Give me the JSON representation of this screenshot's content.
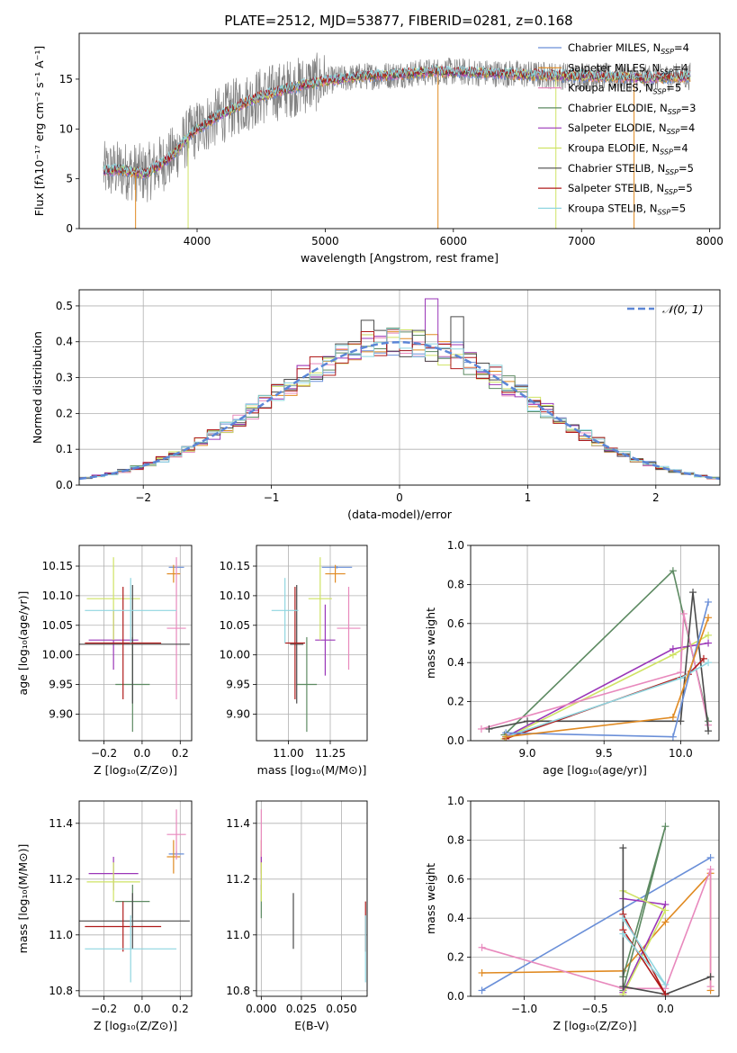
{
  "figure_title": "PLATE=2512, MJD=53877, FIBERID=0281, z=0.168",
  "colors": {
    "Chabrier MILES": "#6a8fd8",
    "Salpeter MILES": "#e08a22",
    "Kroupa MILES": "#e889bd",
    "Chabrier ELODIE": "#5d8a62",
    "Salpeter ELODIE": "#9a36b8",
    "Kroupa ELODIE": "#cfe364",
    "Chabrier STELIB": "#4a4a4a",
    "Salpeter STELIB": "#b01c1c",
    "Kroupa STELIB": "#8fd6e0",
    "data": "#808080",
    "normal": "#5b86d6"
  },
  "chart_data": [
    {
      "id": "spectrum",
      "type": "line",
      "title": "PLATE=2512, MJD=53877, FIBERID=0281, z=0.168",
      "xlabel": "wavelength [Angstrom, rest frame]",
      "ylabel": "Flux [fλ10⁻¹⁷ erg cm⁻² s⁻¹ A⁻¹]",
      "xlim": [
        3080,
        8080
      ],
      "ylim": [
        0,
        19.6
      ],
      "xticks": [
        "4000",
        "5000",
        "6000",
        "7000",
        "8000"
      ],
      "yticks": [
        "0",
        "5",
        "10",
        "15"
      ],
      "grid": false,
      "legend_position": "upper right",
      "x_range_data": [
        3270,
        7850
      ],
      "continuum": {
        "x": [
          3270,
          3400,
          3600,
          3800,
          3950,
          4100,
          4300,
          4500,
          4700,
          4900,
          5100,
          5300,
          5500,
          5700,
          5900,
          6100,
          6300,
          6500,
          6700,
          6900,
          7100,
          7300,
          7500,
          7700,
          7850
        ],
        "y": [
          5.8,
          5.9,
          5.5,
          7.2,
          9.5,
          10.8,
          12.2,
          13.3,
          14.0,
          14.6,
          15.0,
          15.3,
          15.4,
          15.6,
          15.8,
          15.7,
          15.6,
          15.5,
          15.4,
          15.3,
          15.3,
          15.2,
          15.1,
          15.2,
          15.3
        ]
      },
      "series": [
        {
          "name": "Chabrier MILES",
          "nssp": "4"
        },
        {
          "name": "Salpeter MILES",
          "nssp": "4"
        },
        {
          "name": "Kroupa MILES",
          "nssp": "5"
        },
        {
          "name": "Chabrier ELODIE",
          "nssp": "3"
        },
        {
          "name": "Salpeter ELODIE",
          "nssp": "4"
        },
        {
          "name": "Kroupa ELODIE",
          "nssp": "4"
        },
        {
          "name": "Chabrier STELIB",
          "nssp": "5"
        },
        {
          "name": "Salpeter STELIB",
          "nssp": "5"
        },
        {
          "name": "Kroupa STELIB",
          "nssp": "5"
        }
      ]
    },
    {
      "id": "residuals",
      "type": "histogram",
      "xlabel": "(data-model)/error",
      "ylabel": "Normed distribution",
      "xlim": [
        -2.5,
        2.5
      ],
      "ylim": [
        0,
        0.545
      ],
      "xticks": [
        "−2",
        "−1",
        "0",
        "1",
        "2"
      ],
      "yticks": [
        "0.0",
        "0.1",
        "0.2",
        "0.3",
        "0.4",
        "0.5"
      ],
      "grid": true,
      "legend_position": "upper right",
      "legend_label": "𝒩(0, 1)",
      "bin_width": 0.1,
      "peaks": [
        {
          "x": 0.25,
          "y": 0.52
        },
        {
          "x": 0.45,
          "y": 0.47
        },
        {
          "x": -0.25,
          "y": 0.46
        }
      ]
    },
    {
      "id": "age_vs_Z",
      "type": "errorbar",
      "xlabel": "Z [log₁₀(Z/Z⊙)]",
      "ylabel": "age  [log₁₀(age/yr)]",
      "xlim": [
        -0.33,
        0.26
      ],
      "ylim": [
        9.855,
        10.185
      ],
      "xticks": [
        "−0.2",
        "0.0",
        "0.2"
      ],
      "yticks": [
        "9.90",
        "9.95",
        "10.00",
        "10.05",
        "10.10",
        "10.15"
      ],
      "grid": true,
      "points": [
        {
          "series": "Chabrier MILES",
          "x": 0.18,
          "y": 10.148,
          "xerr": 0.04,
          "yerr": 0.002
        },
        {
          "series": "Salpeter MILES",
          "x": 0.165,
          "y": 10.137,
          "xerr": 0.035,
          "yerr": 0.015
        },
        {
          "series": "Kroupa MILES",
          "x": 0.18,
          "y": 10.045,
          "xerr": 0.05,
          "yerr": 0.12
        },
        {
          "series": "Chabrier ELODIE",
          "x": -0.05,
          "y": 9.95,
          "xerr": 0.09,
          "yerr": 0.08
        },
        {
          "series": "Salpeter ELODIE",
          "x": -0.15,
          "y": 10.025,
          "xerr": 0.13,
          "yerr": 0.05
        },
        {
          "series": "Kroupa ELODIE",
          "x": -0.15,
          "y": 10.095,
          "xerr": 0.14,
          "yerr": 0.07
        },
        {
          "series": "Chabrier STELIB",
          "x": -0.05,
          "y": 10.018,
          "xerr": 0.3,
          "yerr": 0.1
        },
        {
          "series": "Salpeter STELIB",
          "x": -0.1,
          "y": 10.02,
          "xerr": 0.2,
          "yerr": 0.095
        },
        {
          "series": "Kroupa STELIB",
          "x": -0.06,
          "y": 10.075,
          "xerr": 0.24,
          "yerr": 0.055
        }
      ]
    },
    {
      "id": "age_vs_mass",
      "type": "errorbar",
      "xlabel": "mass [log₁₀(M/M⊙)]",
      "ylabel": "",
      "xlim": [
        10.81,
        11.47
      ],
      "ylim": [
        9.855,
        10.185
      ],
      "xticks": [
        "11.00",
        "11.25"
      ],
      "yticks": [
        "9.90",
        "9.95",
        "10.00",
        "10.05",
        "10.10",
        "10.15"
      ],
      "grid": true,
      "points": [
        {
          "series": "Chabrier MILES",
          "x": 11.29,
          "y": 10.148,
          "xerr": 0.09,
          "yerr": 0.002
        },
        {
          "series": "Salpeter MILES",
          "x": 11.28,
          "y": 10.137,
          "xerr": 0.06,
          "yerr": 0.015
        },
        {
          "series": "Kroupa MILES",
          "x": 11.36,
          "y": 10.045,
          "xerr": 0.07,
          "yerr": 0.07
        },
        {
          "series": "Chabrier ELODIE",
          "x": 11.11,
          "y": 9.95,
          "xerr": 0.06,
          "yerr": 0.08
        },
        {
          "series": "Salpeter ELODIE",
          "x": 11.22,
          "y": 10.025,
          "xerr": 0.06,
          "yerr": 0.06
        },
        {
          "series": "Kroupa ELODIE",
          "x": 11.19,
          "y": 10.095,
          "xerr": 0.07,
          "yerr": 0.07
        },
        {
          "series": "Chabrier STELIB",
          "x": 11.05,
          "y": 10.018,
          "xerr": 0.04,
          "yerr": 0.1
        },
        {
          "series": "Salpeter STELIB",
          "x": 11.04,
          "y": 10.02,
          "xerr": 0.06,
          "yerr": 0.095
        },
        {
          "series": "Kroupa STELIB",
          "x": 10.98,
          "y": 10.075,
          "xerr": 0.08,
          "yerr": 0.055
        }
      ]
    },
    {
      "id": "weight_vs_age",
      "type": "line",
      "xlabel": "age  [log₁₀(age/yr)]",
      "ylabel": "mass weight",
      "xlim": [
        8.63,
        10.25
      ],
      "ylim": [
        0,
        1.0
      ],
      "xticks": [
        "9.0",
        "9.5",
        "10.0"
      ],
      "yticks": [
        "0.0",
        "0.2",
        "0.4",
        "0.6",
        "0.8",
        "1.0"
      ],
      "grid": true,
      "series": [
        {
          "name": "Chabrier ELODIE",
          "x": [
            8.85,
            9.95,
            10.18
          ],
          "y": [
            0.03,
            0.87,
            0.1
          ]
        },
        {
          "name": "Kroupa ELODIE",
          "x": [
            8.85,
            9.95,
            10.18
          ],
          "y": [
            0.01,
            0.44,
            0.54
          ]
        },
        {
          "name": "Salpeter ELODIE",
          "x": [
            8.86,
            9.95,
            10.18
          ],
          "y": [
            0.02,
            0.47,
            0.5
          ]
        },
        {
          "name": "Kroupa MILES",
          "x": [
            8.7,
            10.0,
            10.02,
            10.18
          ],
          "y": [
            0.06,
            0.35,
            0.65,
            0.08
          ]
        },
        {
          "name": "Chabrier STELIB",
          "x": [
            8.75,
            9.0,
            10.0,
            10.08,
            10.18
          ],
          "y": [
            0.06,
            0.1,
            0.1,
            0.76,
            0.05
          ]
        },
        {
          "name": "Salpeter STELIB",
          "x": [
            8.86,
            10.05,
            10.15
          ],
          "y": [
            0.01,
            0.34,
            0.42
          ]
        },
        {
          "name": "Kroupa STELIB",
          "x": [
            8.86,
            10.0,
            10.18
          ],
          "y": [
            0.02,
            0.32,
            0.4
          ]
        },
        {
          "name": "Chabrier MILES",
          "x": [
            8.86,
            9.95,
            10.18
          ],
          "y": [
            0.04,
            0.02,
            0.71
          ]
        },
        {
          "name": "Salpeter MILES",
          "x": [
            8.86,
            9.95,
            10.18
          ],
          "y": [
            0.02,
            0.12,
            0.63
          ]
        }
      ]
    },
    {
      "id": "mass_vs_Z",
      "type": "errorbar",
      "xlabel": "Z [log₁₀(Z/Z⊙)]",
      "ylabel": "mass [log₁₀(M/M⊙)]",
      "xlim": [
        -0.33,
        0.26
      ],
      "ylim": [
        10.78,
        11.48
      ],
      "xticks": [
        "−0.2",
        "0.0",
        "0.2"
      ],
      "yticks": [
        "10.8",
        "11.0",
        "11.2",
        "11.4"
      ],
      "grid": true,
      "points": [
        {
          "series": "Chabrier MILES",
          "x": 0.18,
          "y": 11.29,
          "xerr": 0.04,
          "yerr": 0.01
        },
        {
          "series": "Salpeter MILES",
          "x": 0.165,
          "y": 11.28,
          "xerr": 0.035,
          "yerr": 0.06
        },
        {
          "series": "Kroupa MILES",
          "x": 0.18,
          "y": 11.36,
          "xerr": 0.05,
          "yerr": 0.09
        },
        {
          "series": "Chabrier ELODIE",
          "x": -0.05,
          "y": 11.12,
          "xerr": 0.09,
          "yerr": 0.06
        },
        {
          "series": "Salpeter ELODIE",
          "x": -0.15,
          "y": 11.22,
          "xerr": 0.13,
          "yerr": 0.06
        },
        {
          "series": "Kroupa ELODIE",
          "x": -0.15,
          "y": 11.19,
          "xerr": 0.14,
          "yerr": 0.07
        },
        {
          "series": "Chabrier STELIB",
          "x": -0.05,
          "y": 11.05,
          "xerr": 0.3,
          "yerr": 0.1
        },
        {
          "series": "Salpeter STELIB",
          "x": -0.1,
          "y": 11.03,
          "xerr": 0.2,
          "yerr": 0.09
        },
        {
          "series": "Kroupa STELIB",
          "x": -0.06,
          "y": 10.95,
          "xerr": 0.24,
          "yerr": 0.12
        }
      ]
    },
    {
      "id": "mass_vs_ebv",
      "type": "errorbar",
      "xlabel": "E(B-V)",
      "ylabel": "",
      "xlim": [
        -0.003,
        0.066
      ],
      "ylim": [
        10.78,
        11.48
      ],
      "xticks": [
        "0.000",
        "0.025",
        "0.050"
      ],
      "yticks": [
        "10.8",
        "11.0",
        "11.2",
        "11.4"
      ],
      "grid": true,
      "points": [
        {
          "series": "Chabrier MILES",
          "x": 0.0,
          "y": 11.29,
          "xerr": 0,
          "yerr": 0.01
        },
        {
          "series": "Salpeter MILES",
          "x": 0.0,
          "y": 11.28,
          "xerr": 0,
          "yerr": 0.06
        },
        {
          "series": "Kroupa MILES",
          "x": 0.0,
          "y": 11.36,
          "xerr": 0,
          "yerr": 0.09
        },
        {
          "series": "Chabrier ELODIE",
          "x": 0.0,
          "y": 11.12,
          "xerr": 0,
          "yerr": 0.06
        },
        {
          "series": "Salpeter ELODIE",
          "x": 0.0,
          "y": 11.22,
          "xerr": 0,
          "yerr": 0.06
        },
        {
          "series": "Kroupa ELODIE",
          "x": 0.0,
          "y": 11.19,
          "xerr": 0,
          "yerr": 0.07
        },
        {
          "series": "Chabrier STELIB",
          "x": 0.02,
          "y": 11.05,
          "xerr": 0,
          "yerr": 0.1
        },
        {
          "series": "Salpeter STELIB",
          "x": 0.065,
          "y": 11.03,
          "xerr": 0,
          "yerr": 0.09
        },
        {
          "series": "Kroupa STELIB",
          "x": 0.065,
          "y": 10.95,
          "xerr": 0,
          "yerr": 0.12
        }
      ]
    },
    {
      "id": "weight_vs_Z",
      "type": "line",
      "xlabel": "Z [log₁₀(Z/Z⊙)]",
      "ylabel": "mass weight",
      "xlim": [
        -1.38,
        0.38
      ],
      "ylim": [
        0,
        1.0
      ],
      "xticks": [
        "−1.0",
        "−0.5",
        "0.0"
      ],
      "yticks": [
        "0.0",
        "0.2",
        "0.4",
        "0.6",
        "0.8",
        "1.0"
      ],
      "grid": true,
      "series": [
        {
          "name": "Chabrier MILES",
          "x": [
            -1.3,
            0.32
          ],
          "y": [
            0.03,
            0.71
          ]
        },
        {
          "name": "Salpeter MILES",
          "x": [
            -1.3,
            -0.3,
            0.0,
            0.32,
            0.32
          ],
          "y": [
            0.12,
            0.13,
            0.38,
            0.63,
            0.03
          ]
        },
        {
          "name": "Kroupa MILES",
          "x": [
            -1.3,
            -0.3,
            0.0,
            0.32,
            0.32
          ],
          "y": [
            0.25,
            0.04,
            0.04,
            0.65,
            0.05
          ]
        },
        {
          "name": "Chabrier ELODIE",
          "x": [
            -0.3,
            0.0,
            -0.3
          ],
          "y": [
            0.03,
            0.87,
            0.1
          ]
        },
        {
          "name": "Salpeter ELODIE",
          "x": [
            -0.3,
            0.0,
            -0.3
          ],
          "y": [
            0.02,
            0.47,
            0.5
          ]
        },
        {
          "name": "Kroupa ELODIE",
          "x": [
            -0.3,
            0.0,
            -0.3
          ],
          "y": [
            0.01,
            0.44,
            0.54
          ]
        },
        {
          "name": "Chabrier STELIB",
          "x": [
            -0.3,
            -0.3,
            0.0,
            0.32
          ],
          "y": [
            0.76,
            0.05,
            0.01,
            0.1
          ]
        },
        {
          "name": "Salpeter STELIB",
          "x": [
            -0.3,
            0.0,
            -0.3
          ],
          "y": [
            0.34,
            0.01,
            0.42
          ]
        },
        {
          "name": "Kroupa STELIB",
          "x": [
            -0.3,
            0.0,
            -0.3
          ],
          "y": [
            0.4,
            0.06,
            0.32
          ]
        }
      ]
    }
  ]
}
